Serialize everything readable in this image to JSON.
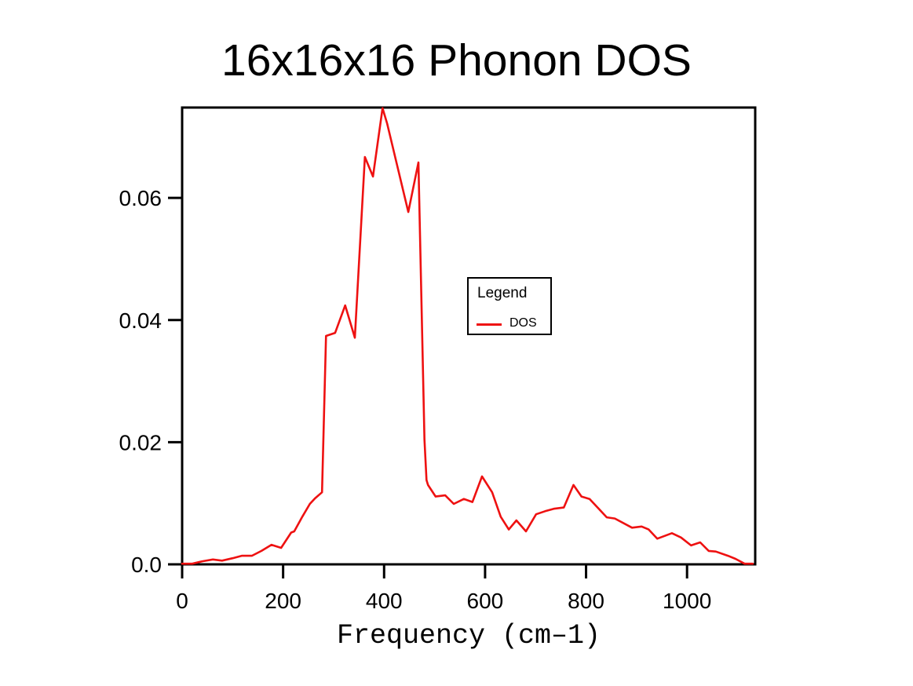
{
  "chart_data": {
    "type": "line",
    "title": "16x16x16 Phonon DOS",
    "xlabel": "Frequency (cm–1)",
    "ylabel": "",
    "xlim": [
      0,
      1135
    ],
    "ylim": [
      0,
      0.0748
    ],
    "grid": false,
    "x_ticks": [
      {
        "v": 0,
        "label": "0"
      },
      {
        "v": 200,
        "label": "200"
      },
      {
        "v": 400,
        "label": "400"
      },
      {
        "v": 600,
        "label": "600"
      },
      {
        "v": 800,
        "label": "800"
      },
      {
        "v": 1000,
        "label": "1000"
      }
    ],
    "y_ticks": [
      {
        "v": 0.0,
        "label": "0.0"
      },
      {
        "v": 0.02,
        "label": "0.02"
      },
      {
        "v": 0.04,
        "label": "0.04"
      },
      {
        "v": 0.06,
        "label": "0.06"
      }
    ],
    "legend": {
      "title": "Legend",
      "position": "center-right-of-plot",
      "entries": [
        {
          "label": "DOS",
          "color": "#ee1111"
        }
      ]
    },
    "colors": {
      "curve": "#ee1111",
      "axes": "#000000",
      "background": "#ffffff"
    },
    "series": [
      {
        "name": "DOS",
        "color": "#ee1111",
        "points": [
          [
            0,
            0.0001
          ],
          [
            20,
            0.0001
          ],
          [
            40,
            0.0005
          ],
          [
            61,
            0.0008
          ],
          [
            79,
            0.0006
          ],
          [
            100,
            0.001
          ],
          [
            118,
            0.0014
          ],
          [
            138,
            0.0014
          ],
          [
            157,
            0.0022
          ],
          [
            177,
            0.0032
          ],
          [
            196,
            0.0027
          ],
          [
            216,
            0.0052
          ],
          [
            222,
            0.0054
          ],
          [
            238,
            0.0078
          ],
          [
            253,
            0.0099
          ],
          [
            263,
            0.0108
          ],
          [
            277,
            0.0118
          ],
          [
            285,
            0.0374
          ],
          [
            303,
            0.0379
          ],
          [
            323,
            0.0424
          ],
          [
            342,
            0.0371
          ],
          [
            362,
            0.0667
          ],
          [
            378,
            0.0635
          ],
          [
            397,
            0.0747
          ],
          [
            406,
            0.0722
          ],
          [
            448,
            0.0577
          ],
          [
            468,
            0.0658
          ],
          [
            480,
            0.0204
          ],
          [
            484,
            0.0138
          ],
          [
            487,
            0.013
          ],
          [
            502,
            0.0111
          ],
          [
            521,
            0.0113
          ],
          [
            538,
            0.0099
          ],
          [
            558,
            0.0107
          ],
          [
            575,
            0.0102
          ],
          [
            594,
            0.0144
          ],
          [
            614,
            0.0118
          ],
          [
            631,
            0.0078
          ],
          [
            647,
            0.0057
          ],
          [
            662,
            0.0072
          ],
          [
            681,
            0.0054
          ],
          [
            701,
            0.0082
          ],
          [
            719,
            0.0087
          ],
          [
            736,
            0.0091
          ],
          [
            756,
            0.0093
          ],
          [
            775,
            0.013
          ],
          [
            791,
            0.0111
          ],
          [
            807,
            0.0107
          ],
          [
            841,
            0.0077
          ],
          [
            857,
            0.0075
          ],
          [
            891,
            0.006
          ],
          [
            910,
            0.0062
          ],
          [
            924,
            0.0057
          ],
          [
            941,
            0.0042
          ],
          [
            970,
            0.0051
          ],
          [
            988,
            0.0044
          ],
          [
            1008,
            0.0031
          ],
          [
            1026,
            0.0036
          ],
          [
            1043,
            0.0022
          ],
          [
            1057,
            0.0021
          ],
          [
            1081,
            0.0014
          ],
          [
            1096,
            0.0009
          ],
          [
            1114,
            0.0001
          ],
          [
            1130,
            0.0001
          ]
        ]
      }
    ]
  }
}
